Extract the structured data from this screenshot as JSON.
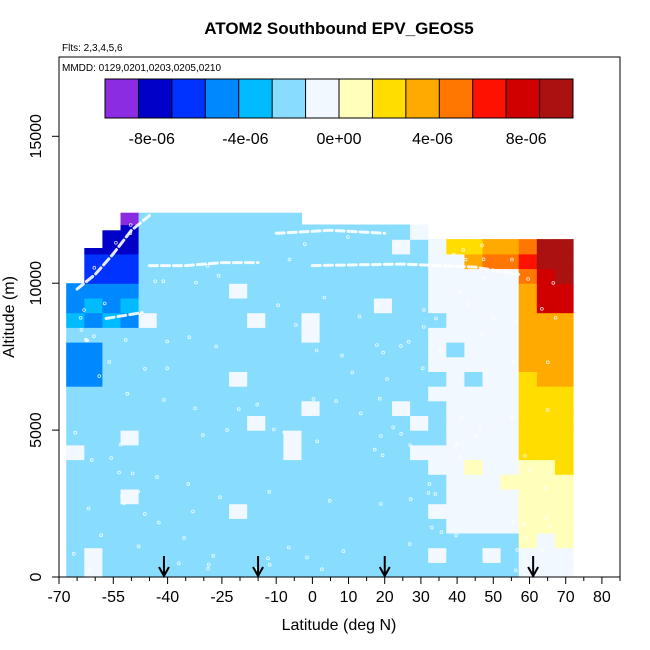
{
  "chart_data": {
    "type": "heatmap",
    "title": "ATOM2 Southbound EPV_GEOS5",
    "subtitle_flights": "Flts: 2,3,4,5,6",
    "subtitle_dates": "MMDD: 0129,0201,0203,0205,0210",
    "xlabel": "Latitude (deg N)",
    "ylabel": "Altitude (m)",
    "xlim": [
      -70,
      85
    ],
    "ylim": [
      0,
      17700
    ],
    "x_ticks": [
      -70,
      -55,
      -40,
      -25,
      -10,
      0,
      10,
      20,
      30,
      40,
      50,
      60,
      70,
      80
    ],
    "x_tick_labels": [
      "-70",
      "-55",
      "-40",
      "-25",
      "-10",
      "0",
      "10",
      "20",
      "30",
      "40",
      "50",
      "60",
      "70",
      "80"
    ],
    "x_minor_ticks": [
      -65,
      -60,
      -50,
      -45,
      -35,
      -30,
      -20,
      -15,
      -5,
      5,
      15,
      25,
      35,
      45,
      55,
      65,
      75,
      85
    ],
    "y_ticks": [
      0,
      5000,
      10000,
      15000
    ],
    "y_tick_labels": [
      "0",
      "5000",
      "10000",
      "15000"
    ],
    "colorbar": {
      "min": -1e-05,
      "max": 1e-05,
      "colors": [
        "#8b2be2",
        "#0000c8",
        "#0033ff",
        "#0088ff",
        "#00bbff",
        "#88ddff",
        "#f2f8ff",
        "#ffffbb",
        "#ffdd00",
        "#ffaa00",
        "#ff7700",
        "#ff1100",
        "#d00000",
        "#aa1111"
      ],
      "tick_values": [
        -8e-06,
        -4e-06,
        0,
        4e-06,
        8e-06
      ],
      "tick_labels": [
        "-8e-06",
        "-4e-06",
        "0e+00",
        "4e-06",
        "8e-06"
      ]
    },
    "grid": false,
    "legend": "colorbar-top",
    "arrows_latitude": [
      -41,
      -15,
      20,
      61
    ]
  }
}
